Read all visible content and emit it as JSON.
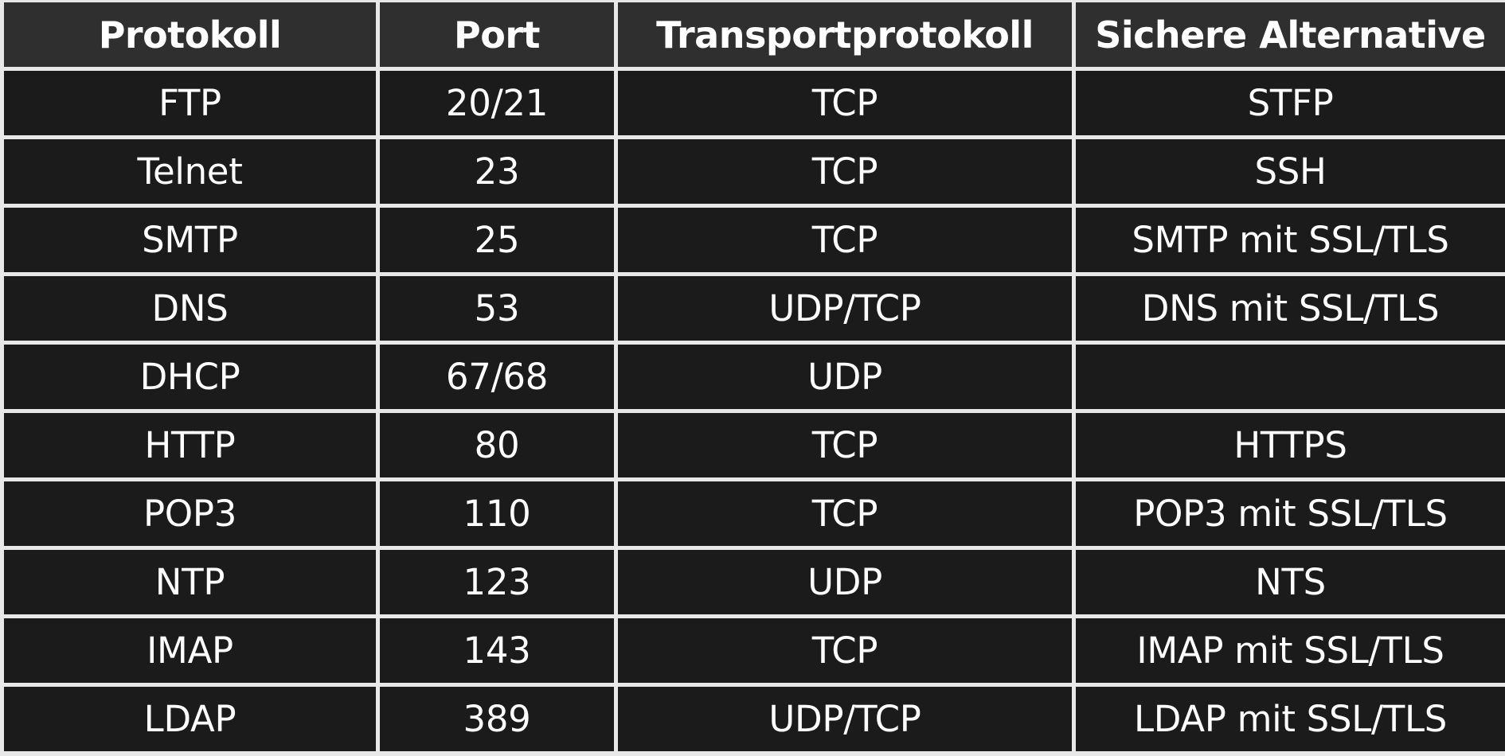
{
  "table": {
    "headers": [
      "Protokoll",
      "Port",
      "Transportprotokoll",
      "Sichere Alternative"
    ],
    "rows": [
      [
        "FTP",
        "20/21",
        "TCP",
        "STFP"
      ],
      [
        "Telnet",
        "23",
        "TCP",
        "SSH"
      ],
      [
        "SMTP",
        "25",
        "TCP",
        "SMTP mit SSL/TLS"
      ],
      [
        "DNS",
        "53",
        "UDP/TCP",
        "DNS mit SSL/TLS"
      ],
      [
        "DHCP",
        "67/68",
        "UDP",
        ""
      ],
      [
        "HTTP",
        "80",
        "TCP",
        "HTTPS"
      ],
      [
        "POP3",
        "110",
        "TCP",
        "POP3 mit SSL/TLS"
      ],
      [
        "NTP",
        "123",
        "UDP",
        "NTS"
      ],
      [
        "IMAP",
        "143",
        "TCP",
        "IMAP mit SSL/TLS"
      ],
      [
        "LDAP",
        "389",
        "UDP/TCP",
        "LDAP mit SSL/TLS"
      ]
    ]
  },
  "colors": {
    "header_bg": "#2f2f2f",
    "cell_bg": "#1b1b1b",
    "grid": "#e8e8e8",
    "text": "#ffffff"
  }
}
